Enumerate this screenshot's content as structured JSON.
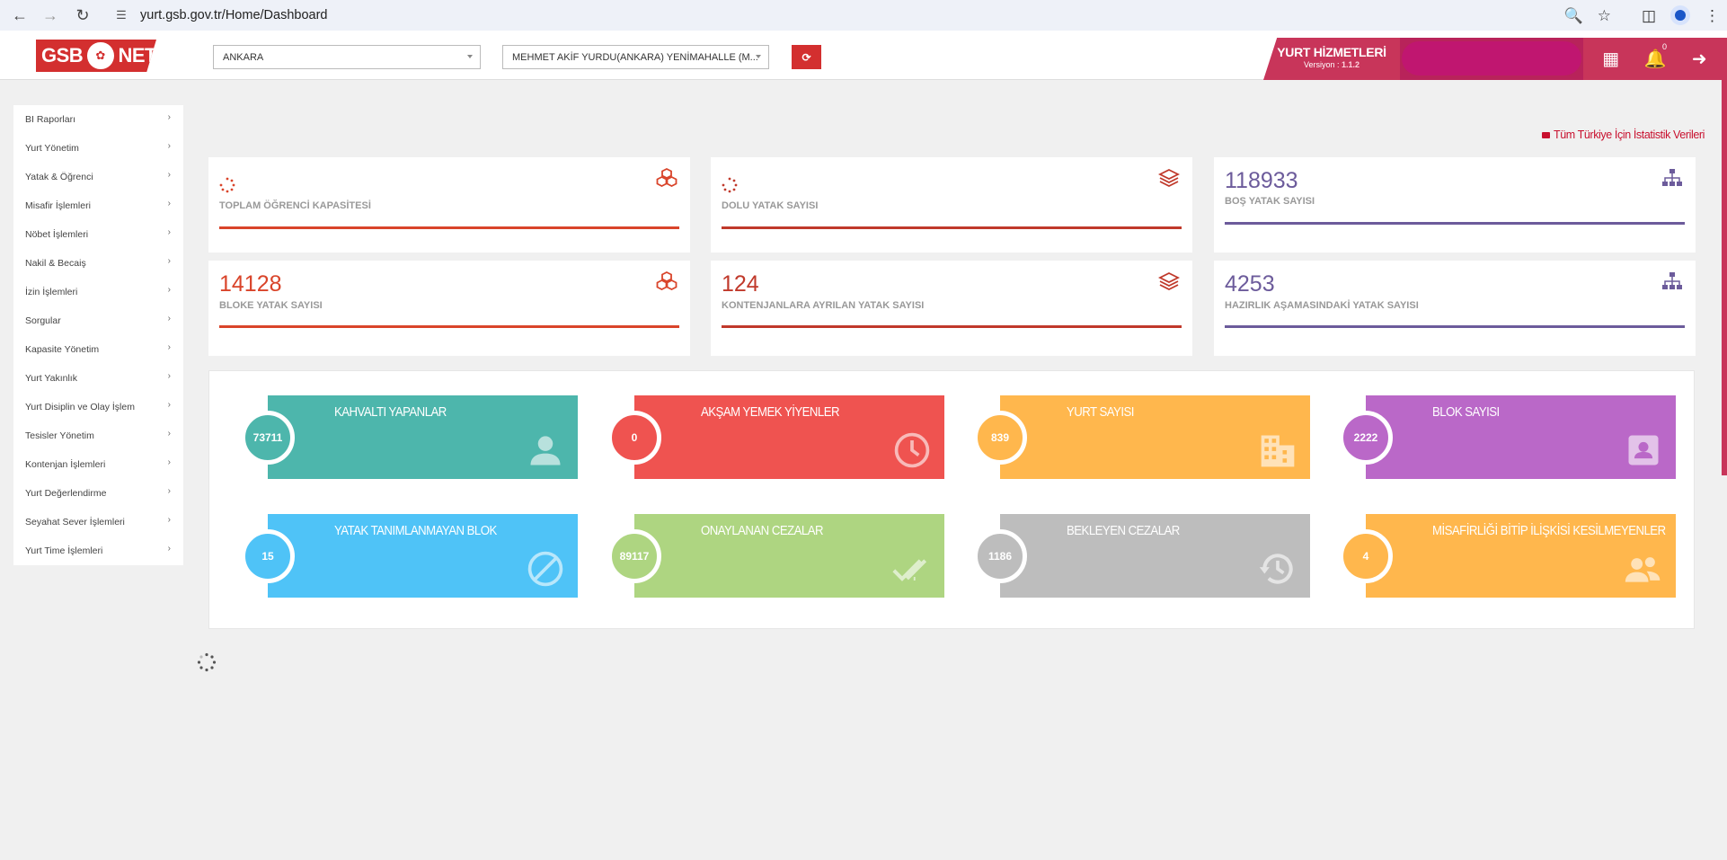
{
  "browser": {
    "url": "yurt.gsb.gov.tr/Home/Dashboard"
  },
  "header": {
    "logo_left": "GSB",
    "logo_right": "NET",
    "city_select": "ANKARA",
    "dorm_select": "MEHMET AKİF YURDU(ANKARA) YENİMAHALLE (M...",
    "badge_title": "YURT HİZMETLERİ",
    "version_label": "Versiyon :",
    "version": "1.1.2",
    "notification_count": "0"
  },
  "sidebar": {
    "items": [
      {
        "label": "BI Raporları"
      },
      {
        "label": "Yurt Yönetim"
      },
      {
        "label": "Yatak & Öğrenci"
      },
      {
        "label": "Misafir İşlemleri"
      },
      {
        "label": "Nöbet İşlemleri"
      },
      {
        "label": "Nakil & Becaiş"
      },
      {
        "label": "İzin İşlemleri"
      },
      {
        "label": "Sorgular"
      },
      {
        "label": "Kapasite Yönetim"
      },
      {
        "label": "Yurt Yakınlık"
      },
      {
        "label": "Yurt Disiplin ve Olay İşlem"
      },
      {
        "label": "Tesisler Yönetim"
      },
      {
        "label": "Kontenjan İşlemleri"
      },
      {
        "label": "Yurt Değerlendirme"
      },
      {
        "label": "Seyahat Sever İşlemleri"
      },
      {
        "label": "Yurt Time İşlemleri"
      }
    ]
  },
  "main": {
    "stats_link": "Tüm Türkiye İçin İstatistik Verileri",
    "cards": [
      {
        "value": "",
        "label": "TOPLAM ÖĞRENCİ KAPASİTESİ",
        "loading": true,
        "color": "#d9442a",
        "icon": "cubes-icon"
      },
      {
        "value": "",
        "label": "DOLU YATAK SAYISI",
        "loading": true,
        "color": "#c0392b",
        "icon": "layers-icon"
      },
      {
        "value": "118933",
        "label": "BOŞ YATAK SAYISI",
        "loading": false,
        "color": "#6c5b9b",
        "icon": "sitemap-icon"
      },
      {
        "value": "14128",
        "label": "BLOKE YATAK SAYISI",
        "loading": false,
        "color": "#d9442a",
        "icon": "cubes-icon"
      },
      {
        "value": "124",
        "label": "KONTENJANLARA AYRILAN YATAK SAYISI",
        "loading": false,
        "color": "#c0392b",
        "icon": "layers-icon"
      },
      {
        "value": "4253",
        "label": "HAZIRLIK AŞAMASINDAKİ YATAK SAYISI",
        "loading": false,
        "color": "#6c5b9b",
        "icon": "sitemap-icon"
      }
    ],
    "tiles": [
      {
        "count": "73711",
        "title": "KAHVALTI YAPANLAR",
        "color": "#4db6ac",
        "icon": "user-icon"
      },
      {
        "count": "0",
        "title": "AKŞAM YEMEK YİYENLER",
        "color": "#ef5350",
        "icon": "clock-icon"
      },
      {
        "count": "839",
        "title": "YURT SAYISI",
        "color": "#ffb74d",
        "icon": "building-icon"
      },
      {
        "count": "2222",
        "title": "BLOK SAYISI",
        "color": "#ba68c8",
        "icon": "contact-card-icon"
      },
      {
        "count": "15",
        "title": "YATAK TANIMLANMAYAN BLOK",
        "color": "#4fc3f7",
        "icon": "block-icon"
      },
      {
        "count": "89117",
        "title": "ONAYLANAN CEZALAR",
        "color": "#aed581",
        "icon": "double-check-icon"
      },
      {
        "count": "1186",
        "title": "BEKLEYEN CEZALAR",
        "color": "#bdbdbd",
        "icon": "history-icon"
      },
      {
        "count": "4",
        "title": "MİSAFİRLİĞİ BİTİP İLİŞKİSİ KESİLMEYENLER",
        "color": "#ffb74d",
        "icon": "group-icon"
      }
    ]
  }
}
